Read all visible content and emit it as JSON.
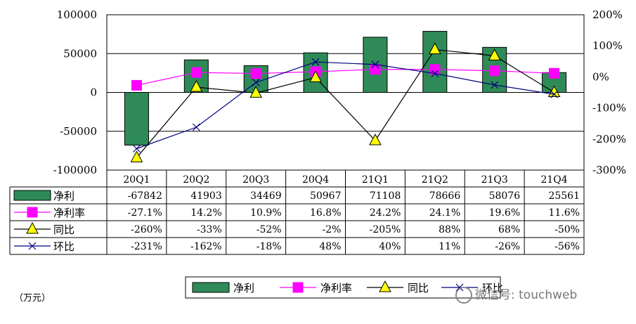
{
  "chart_data": {
    "type": "bar",
    "categories": [
      "20Q1",
      "20Q2",
      "20Q3",
      "20Q4",
      "21Q1",
      "21Q2",
      "21Q3",
      "21Q4"
    ],
    "unit_label": "（万元）",
    "y_left": {
      "ylim": [
        -100000,
        100000
      ],
      "ticks": [
        "100000",
        "50000",
        "0",
        "-50000",
        "-100000"
      ]
    },
    "y_right": {
      "ylim": [
        -300,
        200
      ],
      "ticks": [
        "200%",
        "100%",
        "0%",
        "-100%",
        "-200%",
        "-300%"
      ]
    },
    "series": [
      {
        "name": "净利",
        "kind": "bar",
        "axis": "left",
        "color": "#2e8b57",
        "values": [
          -67842,
          41903,
          34469,
          50967,
          71108,
          78666,
          58076,
          25561
        ],
        "labels": [
          "-67842",
          "41903",
          "34469",
          "50967",
          "71108",
          "78666",
          "58076",
          "25561"
        ]
      },
      {
        "name": "净利率",
        "kind": "line",
        "marker": "square",
        "axis": "right",
        "color": "#ff00ff",
        "values": [
          -27.1,
          14.2,
          10.9,
          16.8,
          24.2,
          24.1,
          19.6,
          11.6
        ],
        "labels": [
          "-27.1%",
          "14.2%",
          "10.9%",
          "16.8%",
          "24.2%",
          "24.1%",
          "19.6%",
          "11.6%"
        ]
      },
      {
        "name": "同比",
        "kind": "line",
        "marker": "triangle",
        "axis": "right",
        "color": "#000000",
        "marker_color": "#ffff00",
        "values": [
          -260,
          -33,
          -52,
          -2,
          -205,
          88,
          68,
          -50
        ],
        "labels": [
          "-260%",
          "-33%",
          "-52%",
          "-2%",
          "-205%",
          "88%",
          "68%",
          "-50%"
        ]
      },
      {
        "name": "环比",
        "kind": "line",
        "marker": "x",
        "axis": "right",
        "color": "#000080",
        "values": [
          -231,
          -162,
          -18,
          48,
          40,
          11,
          -26,
          -56
        ],
        "labels": [
          "-231%",
          "-162%",
          "-18%",
          "48%",
          "40%",
          "11%",
          "-26%",
          "-56%"
        ]
      }
    ],
    "grid": true,
    "legend_position": "bottom"
  },
  "watermark": {
    "text": "微信号: touchweb"
  }
}
